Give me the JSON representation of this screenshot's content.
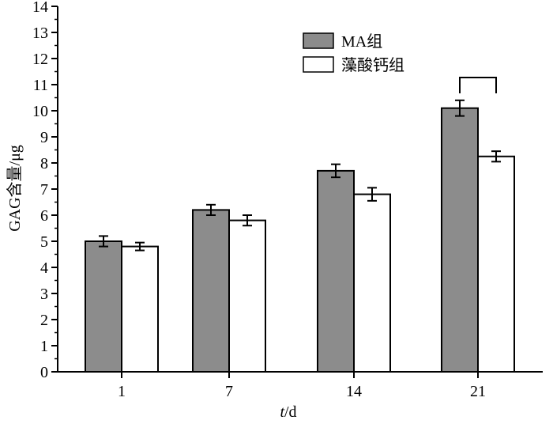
{
  "chart_data": {
    "type": "bar",
    "title": "",
    "xlabel_italic": "t",
    "xlabel_rest": "/d",
    "ylabel": "GAG含量/μg",
    "categories": [
      "1",
      "7",
      "14",
      "21"
    ],
    "ylim": [
      0,
      14
    ],
    "yticks": [
      0,
      1,
      2,
      3,
      4,
      5,
      6,
      7,
      8,
      9,
      10,
      11,
      12,
      13,
      14
    ],
    "grid": false,
    "legend_position": "top-right",
    "series": [
      {
        "name": "MA组",
        "color": "#8c8c8c",
        "values": [
          5.0,
          6.2,
          7.7,
          10.1
        ],
        "errors": [
          0.2,
          0.2,
          0.25,
          0.3
        ]
      },
      {
        "name": "藻酸钙组",
        "color": "#ffffff",
        "values": [
          4.8,
          5.8,
          6.8,
          8.25
        ],
        "errors": [
          0.15,
          0.2,
          0.25,
          0.2
        ]
      }
    ],
    "significance_bracket": {
      "category": "21"
    }
  }
}
